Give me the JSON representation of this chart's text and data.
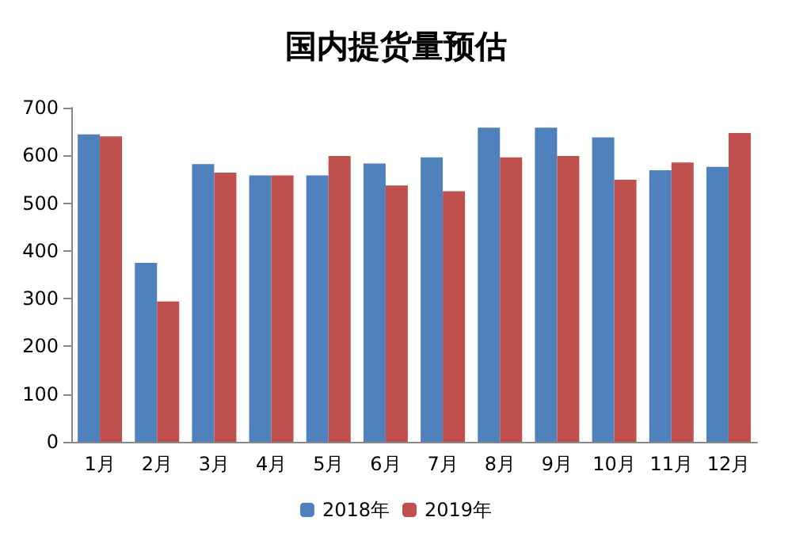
{
  "chart_data": {
    "type": "bar",
    "title": "国内提货量预估",
    "categories": [
      "1月",
      "2月",
      "3月",
      "4月",
      "5月",
      "6月",
      "7月",
      "8月",
      "9月",
      "10月",
      "11月",
      "12月"
    ],
    "series": [
      {
        "name": "2018年",
        "color": "#4f81bd",
        "values": [
          644,
          375,
          582,
          558,
          558,
          583,
          596,
          658,
          658,
          638,
          569,
          576
        ]
      },
      {
        "name": "2019年",
        "color": "#c0504d",
        "values": [
          640,
          294,
          564,
          558,
          599,
          537,
          525,
          596,
          599,
          549,
          585,
          647
        ]
      }
    ],
    "ylim": [
      0,
      700
    ],
    "yticks": [
      0,
      100,
      200,
      300,
      400,
      500,
      600,
      700
    ],
    "grid": false,
    "legend": "bottom"
  }
}
